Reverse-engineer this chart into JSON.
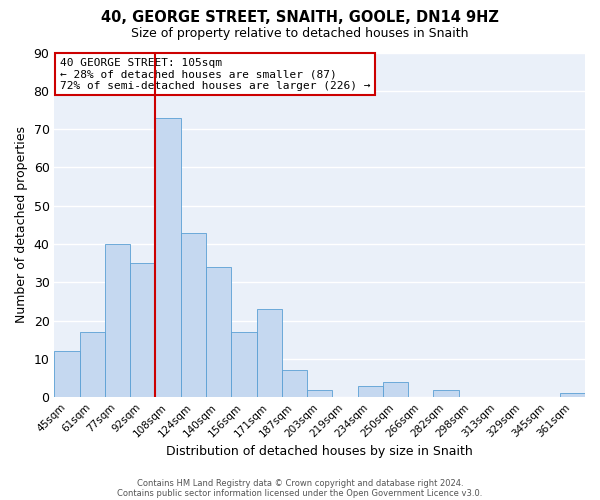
{
  "title": "40, GEORGE STREET, SNAITH, GOOLE, DN14 9HZ",
  "subtitle": "Size of property relative to detached houses in Snaith",
  "xlabel": "Distribution of detached houses by size in Snaith",
  "ylabel": "Number of detached properties",
  "bar_color": "#c5d8f0",
  "bar_edgecolor": "#5a9fd4",
  "background_color": "#eaf0f9",
  "grid_color": "#ffffff",
  "categories": [
    "45sqm",
    "61sqm",
    "77sqm",
    "92sqm",
    "108sqm",
    "124sqm",
    "140sqm",
    "156sqm",
    "171sqm",
    "187sqm",
    "203sqm",
    "219sqm",
    "234sqm",
    "250sqm",
    "266sqm",
    "282sqm",
    "298sqm",
    "313sqm",
    "329sqm",
    "345sqm",
    "361sqm"
  ],
  "values": [
    12,
    17,
    40,
    35,
    73,
    43,
    34,
    17,
    23,
    7,
    2,
    0,
    3,
    4,
    0,
    2,
    0,
    0,
    0,
    0,
    1
  ],
  "ylim": [
    0,
    90
  ],
  "yticks": [
    0,
    10,
    20,
    30,
    40,
    50,
    60,
    70,
    80,
    90
  ],
  "vline_bin_index": 4,
  "vline_color": "#cc0000",
  "annotation_box_edgecolor": "#cc0000",
  "annotation_lines": [
    "40 GEORGE STREET: 105sqm",
    "← 28% of detached houses are smaller (87)",
    "72% of semi-detached houses are larger (226) →"
  ],
  "footer_lines": [
    "Contains HM Land Registry data © Crown copyright and database right 2024.",
    "Contains public sector information licensed under the Open Government Licence v3.0."
  ]
}
